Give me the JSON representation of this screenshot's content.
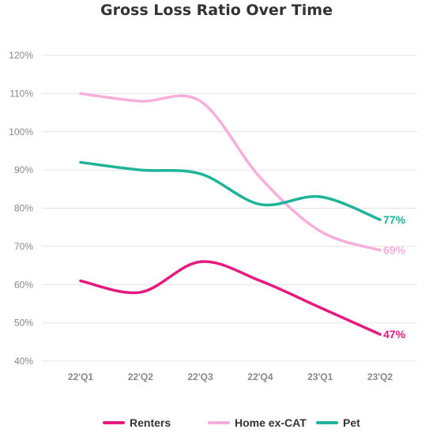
{
  "chart_data": {
    "type": "line",
    "title": "Gross Loss Ratio Over Time",
    "xlabel": "",
    "ylabel": "",
    "categories": [
      "22'Q1",
      "22'Q2",
      "22'Q3",
      "22'Q4",
      "23'Q1",
      "23'Q2"
    ],
    "y_ticks": [
      "40%",
      "50%",
      "60%",
      "70%",
      "80%",
      "90%",
      "100%",
      "110%",
      "120%"
    ],
    "ylim": [
      40,
      120
    ],
    "grid": true,
    "legend_position": "bottom",
    "series": [
      {
        "name": "Renters",
        "color": "#e5197f",
        "values": [
          61,
          58,
          66,
          61,
          54,
          47
        ],
        "end_label": "47%"
      },
      {
        "name": "Home ex-CAT",
        "color": "#f8aeda",
        "values": [
          110,
          108,
          108,
          88,
          74,
          69
        ],
        "end_label": "69%"
      },
      {
        "name": "Pet",
        "color": "#1fb39a",
        "values": [
          92,
          90,
          89,
          81,
          83,
          77
        ],
        "end_label": "77%"
      }
    ]
  }
}
